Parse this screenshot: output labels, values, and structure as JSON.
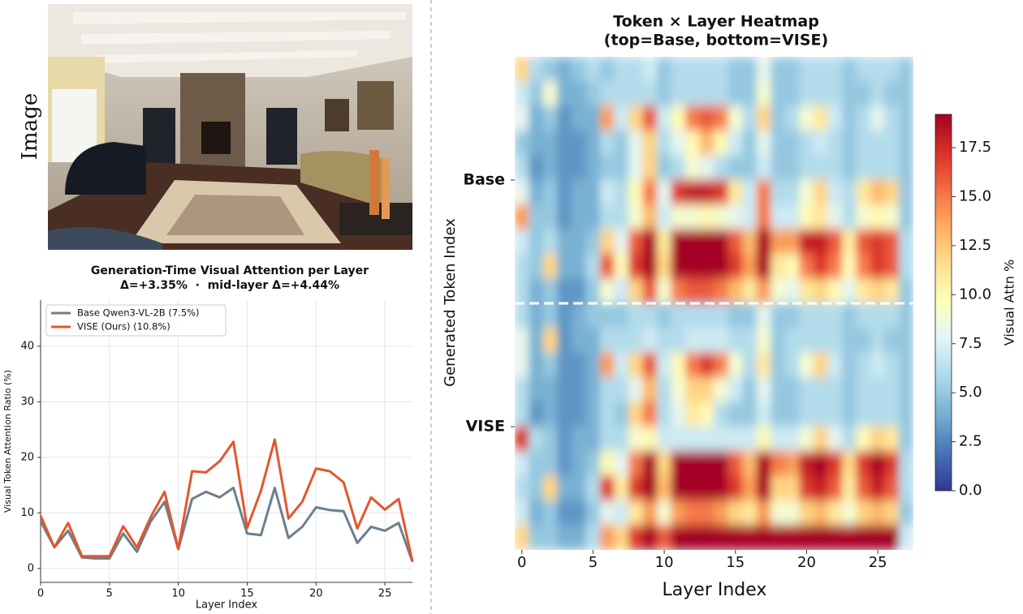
{
  "image_label": "Image",
  "chart_data": [
    {
      "type": "line",
      "title": "Generation-Time Visual Attention per Layer",
      "subtitle": "Δ=+3.35%  ·  mid-layer Δ=+4.44%",
      "xlabel": "Layer Index",
      "ylabel": "Visual Token Attention Ratio (%)",
      "x": [
        0,
        1,
        2,
        3,
        4,
        5,
        6,
        7,
        8,
        9,
        10,
        11,
        12,
        13,
        14,
        15,
        16,
        17,
        18,
        19,
        20,
        21,
        22,
        23,
        24,
        25,
        26,
        27
      ],
      "series": [
        {
          "name": "Base Qwen3-VL-2B (7.5%)",
          "color": "#6b7f8e",
          "values": [
            8.5,
            3.8,
            6.8,
            2,
            1.8,
            1.8,
            6.3,
            3,
            8.5,
            12,
            3.5,
            12.5,
            13.8,
            12.8,
            14.5,
            6.3,
            6,
            14.5,
            5.5,
            7.5,
            11,
            10.5,
            10.3,
            4.6,
            7.5,
            6.8,
            8.2,
            1.2
          ]
        },
        {
          "name": "VISE (Ours) (10.8%)",
          "color": "#e2572f",
          "values": [
            9.5,
            3.8,
            8.2,
            2.2,
            2.2,
            2.2,
            7.6,
            3.8,
            9.3,
            13.8,
            3.5,
            17.5,
            17.3,
            19.3,
            22.8,
            7.3,
            14,
            23.2,
            9,
            12,
            18,
            17.5,
            15.5,
            7.2,
            12.8,
            10.6,
            12.5,
            1.3
          ]
        }
      ],
      "xlim": [
        0,
        27
      ],
      "ylim": [
        -2.5,
        48.3
      ],
      "xticks": [
        0,
        5,
        10,
        15,
        20,
        25
      ],
      "yticks": [
        0,
        10,
        20,
        30,
        40
      ],
      "grid": true,
      "legend": "upper left"
    },
    {
      "type": "heatmap",
      "title": "Token × Layer Heatmap",
      "subtitle": "(top=Base, bottom=VISE)",
      "xlabel": "Layer Index",
      "ylabel": "Generated Token Index",
      "x": [
        0,
        1,
        2,
        3,
        4,
        5,
        6,
        7,
        8,
        9,
        10,
        11,
        12,
        13,
        14,
        15,
        16,
        17,
        18,
        19,
        20,
        21,
        22,
        23,
        24,
        25,
        26,
        27
      ],
      "groups": [
        {
          "name": "Base",
          "rows": [
            [
              12,
              6,
              5,
              4,
              5,
              6,
              5,
              6,
              6,
              7,
              5,
              6,
              6,
              6,
              6,
              5,
              5,
              8,
              5,
              5,
              6,
              6,
              6,
              5,
              6,
              6,
              6,
              5
            ],
            [
              7,
              5,
              9,
              4,
              4,
              5,
              6,
              6,
              6,
              6,
              5,
              6,
              6,
              6,
              6,
              5,
              5,
              9,
              5,
              5,
              6,
              6,
              6,
              5,
              5,
              6,
              5,
              5
            ],
            [
              8,
              4,
              5,
              3,
              4,
              4,
              14,
              7,
              12,
              16,
              7,
              10,
              15,
              16,
              15,
              9,
              6,
              12,
              5,
              6,
              9,
              11,
              7,
              5,
              6,
              8,
              6,
              5
            ],
            [
              5,
              4,
              4,
              3,
              3,
              4,
              6,
              5,
              8,
              12,
              6,
              8,
              10,
              13,
              10,
              7,
              5,
              8,
              5,
              5,
              6,
              7,
              6,
              5,
              6,
              6,
              6,
              5
            ],
            [
              6,
              3,
              4,
              3,
              3,
              4,
              5,
              5,
              8,
              12,
              5,
              6,
              9,
              8,
              6,
              5,
              5,
              7,
              5,
              5,
              6,
              6,
              6,
              5,
              6,
              6,
              6,
              5
            ],
            [
              8,
              4,
              5,
              3,
              4,
              4,
              7,
              6,
              10,
              15,
              8,
              17,
              18,
              18,
              17,
              11,
              7,
              15,
              6,
              6,
              9,
              12,
              7,
              6,
              11,
              13,
              12,
              5
            ],
            [
              14,
              5,
              5,
              3,
              4,
              4,
              6,
              6,
              9,
              13,
              7,
              9,
              9,
              10,
              9,
              8,
              7,
              15,
              7,
              7,
              10,
              11,
              8,
              6,
              9,
              10,
              9,
              5
            ],
            [
              7,
              5,
              6,
              4,
              4,
              5,
              12,
              8,
              16,
              19,
              11,
              19,
              20,
              20,
              20,
              16,
              13,
              19,
              14,
              14,
              18,
              18,
              16,
              11,
              16,
              17,
              16,
              6
            ],
            [
              6,
              5,
              12,
              4,
              4,
              6,
              16,
              10,
              17,
              19,
              12,
              20,
              20,
              20,
              20,
              17,
              14,
              19,
              11,
              10,
              15,
              17,
              15,
              10,
              15,
              17,
              16,
              6
            ],
            [
              6,
              4,
              5,
              3,
              3,
              5,
              9,
              7,
              12,
              16,
              9,
              15,
              16,
              16,
              15,
              13,
              11,
              14,
              9,
              8,
              11,
              12,
              10,
              8,
              11,
              12,
              11,
              5
            ]
          ]
        },
        {
          "name": "VISE",
          "rows": [
            [
              6,
              4,
              5,
              3,
              4,
              5,
              5,
              5,
              6,
              6,
              5,
              6,
              6,
              6,
              6,
              5,
              5,
              8,
              5,
              5,
              6,
              6,
              6,
              5,
              6,
              6,
              6,
              5
            ],
            [
              8,
              4,
              12,
              3,
              4,
              4,
              6,
              6,
              6,
              7,
              6,
              6,
              7,
              7,
              7,
              6,
              6,
              9,
              5,
              6,
              6,
              6,
              6,
              5,
              5,
              6,
              5,
              5
            ],
            [
              8,
              4,
              5,
              3,
              3,
              4,
              14,
              7,
              12,
              16,
              7,
              10,
              15,
              17,
              15,
              9,
              6,
              11,
              5,
              6,
              9,
              12,
              7,
              5,
              6,
              7,
              6,
              5
            ],
            [
              6,
              4,
              4,
              3,
              3,
              4,
              6,
              6,
              8,
              13,
              6,
              9,
              12,
              12,
              9,
              7,
              5,
              8,
              5,
              5,
              6,
              6,
              6,
              5,
              6,
              6,
              6,
              5
            ],
            [
              6,
              3,
              4,
              3,
              3,
              4,
              6,
              5,
              12,
              15,
              6,
              8,
              11,
              10,
              6,
              5,
              5,
              7,
              5,
              5,
              6,
              6,
              6,
              5,
              6,
              6,
              6,
              5
            ],
            [
              17,
              6,
              5,
              3,
              4,
              4,
              6,
              6,
              9,
              10,
              7,
              7,
              7,
              7,
              7,
              7,
              7,
              10,
              7,
              7,
              9,
              12,
              8,
              6,
              10,
              12,
              11,
              5
            ],
            [
              7,
              5,
              5,
              3,
              4,
              5,
              10,
              8,
              15,
              19,
              12,
              19,
              20,
              20,
              20,
              16,
              13,
              19,
              15,
              14,
              18,
              19,
              17,
              12,
              17,
              19,
              17,
              6
            ],
            [
              6,
              5,
              12,
              4,
              4,
              6,
              17,
              11,
              17,
              20,
              13,
              20,
              20,
              20,
              20,
              17,
              14,
              19,
              12,
              12,
              17,
              18,
              16,
              11,
              16,
              18,
              16,
              6
            ],
            [
              7,
              4,
              5,
              3,
              3,
              5,
              8,
              7,
              11,
              14,
              9,
              14,
              15,
              15,
              14,
              12,
              11,
              14,
              9,
              9,
              12,
              13,
              11,
              9,
              12,
              13,
              12,
              5
            ],
            [
              12,
              5,
              5,
              4,
              4,
              6,
              14,
              12,
              17,
              19,
              16,
              20,
              20,
              20,
              20,
              20,
              19,
              20,
              19,
              19,
              20,
              20,
              20,
              19,
              20,
              20,
              20,
              7
            ]
          ]
        }
      ],
      "xlim": [
        -0.5,
        27.5
      ],
      "xticks": [
        0,
        5,
        10,
        15,
        20,
        25
      ],
      "colormap": "RdYlBu_r",
      "clim": [
        0,
        19.2
      ],
      "cticks": [
        {
          "value": 0,
          "label": "0.0"
        },
        2.5,
        {
          "value": 5,
          "label": "5.0"
        },
        7.5,
        {
          "value": 10,
          "label": "10.0"
        },
        12.5,
        {
          "value": 15,
          "label": "15.0"
        },
        17.5
      ],
      "colorbar_label": "Visual Attn %"
    }
  ]
}
